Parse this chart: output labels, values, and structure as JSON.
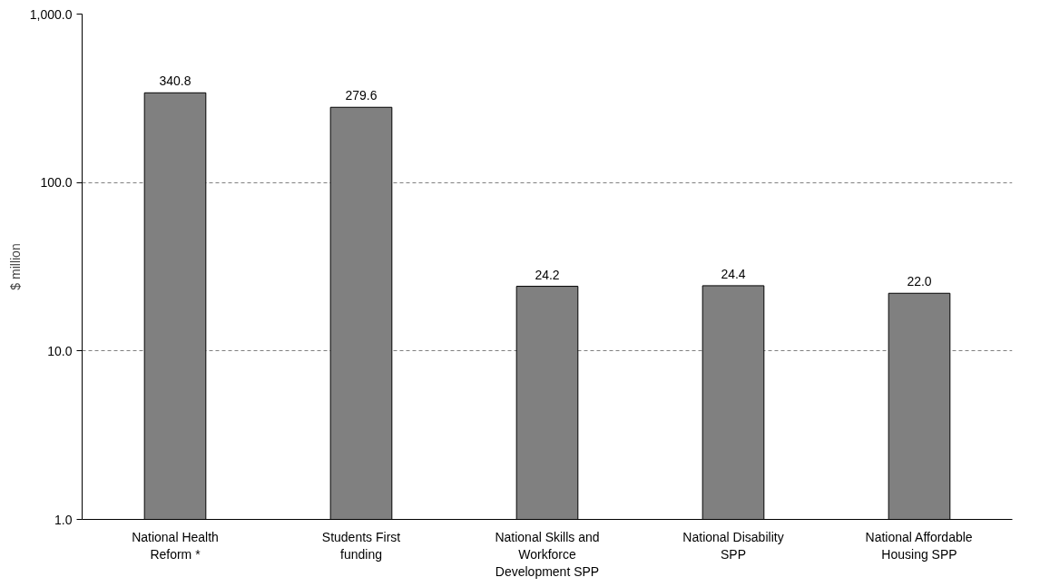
{
  "chart_data": {
    "type": "bar",
    "ylabel": "$ million",
    "categories": [
      "National Health Reform *",
      "Students First funding",
      "National Skills and Workforce Development SPP",
      "National Disability SPP",
      "National Affordable Housing SPP"
    ],
    "values": [
      340.8,
      279.6,
      24.2,
      24.4,
      22.0
    ],
    "color": "#808080",
    "log": true,
    "ylim": [
      1,
      1000
    ],
    "yticks": [
      {
        "value": 1,
        "label": "1.0"
      },
      {
        "value": 10,
        "label": "10.0"
      },
      {
        "value": 100,
        "label": "100.0"
      },
      {
        "value": 1000,
        "label": "1,000.0"
      }
    ],
    "grid": "y",
    "value_labels": [
      "340.8",
      "279.6",
      "24.2",
      "24.4",
      "22.0"
    ]
  }
}
